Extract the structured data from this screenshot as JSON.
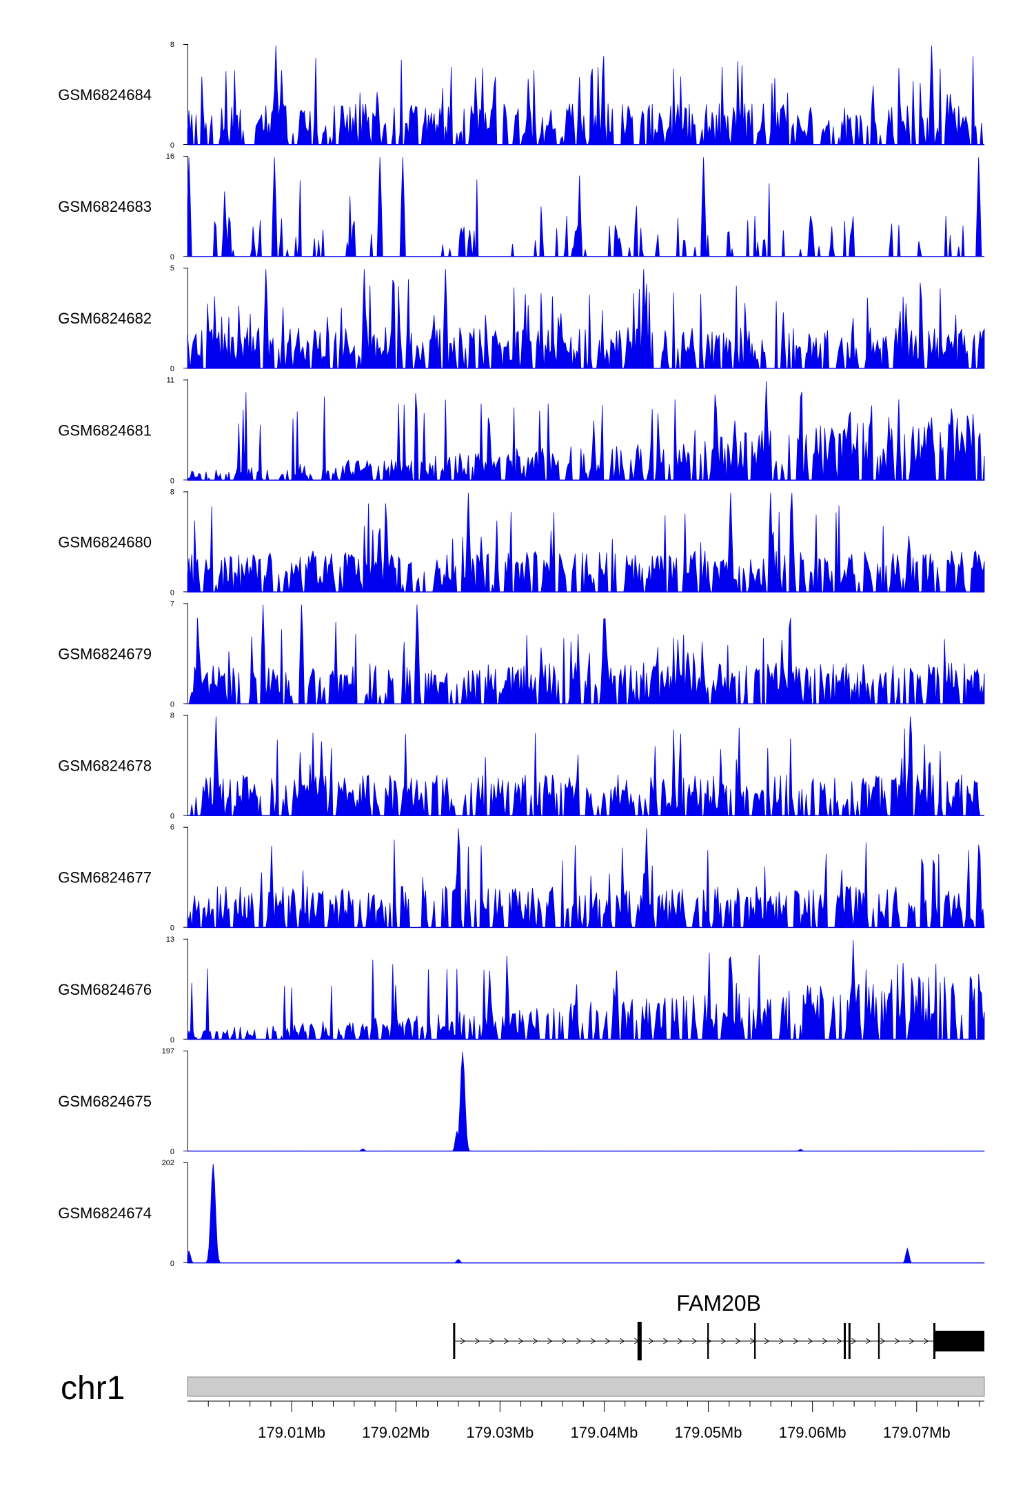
{
  "chart_data": {
    "type": "area",
    "title": "",
    "xlabel": "",
    "ylabel": "",
    "xlim": [
      179000000,
      179076500
    ],
    "chromosome": "chr1",
    "x_ticks": [
      179010000,
      179020000,
      179030000,
      179040000,
      179050000,
      179060000,
      179070000
    ],
    "x_tick_labels": [
      "179.01Mb",
      "179.02Mb",
      "179.03Mb",
      "179.04Mb",
      "179.05Mb",
      "179.06Mb",
      "179.07Mb"
    ],
    "color": "#0000ee",
    "tracks": [
      {
        "name": "GSM6824684",
        "ymax": 8,
        "ymin_label": "0",
        "ymax_label": "8",
        "profile": "noisy-uniform",
        "peaks": [
          [
            179008500,
            8
          ],
          [
            179071500,
            8
          ],
          [
            179009000,
            6
          ]
        ]
      },
      {
        "name": "GSM6824683",
        "ymax": 16,
        "ymin_label": "0",
        "ymax_label": "16",
        "profile": "sparse-spiky",
        "peaks": [
          [
            179000200,
            16
          ],
          [
            179008300,
            16
          ],
          [
            179018500,
            16
          ],
          [
            179020700,
            16
          ],
          [
            179049500,
            16
          ],
          [
            179076000,
            16
          ]
        ]
      },
      {
        "name": "GSM6824682",
        "ymax": 5,
        "ymin_label": "0",
        "ymax_label": "5",
        "profile": "noisy-uniform",
        "peaks": [
          [
            179007500,
            5
          ],
          [
            179017000,
            5
          ],
          [
            179024800,
            5
          ],
          [
            179043800,
            5
          ]
        ]
      },
      {
        "name": "GSM6824681",
        "ymax": 11,
        "ymin_label": "0",
        "ymax_label": "11",
        "profile": "rising",
        "peaks": [
          [
            179055500,
            11
          ],
          [
            179050800,
            8
          ],
          [
            179063500,
            7
          ],
          [
            179067300,
            7
          ]
        ]
      },
      {
        "name": "GSM6824680",
        "ymax": 8,
        "ymin_label": "0",
        "ymax_label": "8",
        "profile": "noisy-uniform",
        "peaks": [
          [
            179027000,
            8
          ],
          [
            179052200,
            8
          ],
          [
            179056000,
            8
          ],
          [
            179058000,
            8
          ]
        ]
      },
      {
        "name": "GSM6824679",
        "ymax": 7,
        "ymin_label": "0",
        "ymax_label": "7",
        "profile": "noisy-uniform",
        "peaks": [
          [
            179007300,
            7
          ],
          [
            179011000,
            7
          ],
          [
            179022000,
            7
          ],
          [
            179040000,
            6
          ]
        ]
      },
      {
        "name": "GSM6824678",
        "ymax": 8,
        "ymin_label": "0",
        "ymax_label": "8",
        "profile": "noisy-uniform",
        "peaks": [
          [
            179002800,
            8
          ],
          [
            179069400,
            8
          ],
          [
            179012800,
            6
          ]
        ]
      },
      {
        "name": "GSM6824677",
        "ymax": 6,
        "ymin_label": "0",
        "ymax_label": "6",
        "profile": "noisy-uniform",
        "peaks": [
          [
            179026000,
            6
          ],
          [
            179044100,
            6
          ],
          [
            179076000,
            5
          ]
        ]
      },
      {
        "name": "GSM6824676",
        "ymax": 13,
        "ymin_label": "0",
        "ymax_label": "13",
        "profile": "rising",
        "peaks": [
          [
            179063900,
            13
          ],
          [
            179029000,
            9
          ],
          [
            179041200,
            9
          ],
          [
            179068700,
            10
          ]
        ]
      },
      {
        "name": "GSM6824675",
        "ymax": 197,
        "ymin_label": "0",
        "ymax_label": "197",
        "profile": "flat-with-peak",
        "peaks": [
          [
            179026400,
            197
          ],
          [
            179025800,
            40
          ],
          [
            179016800,
            5
          ],
          [
            179058800,
            4
          ]
        ]
      },
      {
        "name": "GSM6824674",
        "ymax": 202,
        "ymin_label": "0",
        "ymax_label": "202",
        "profile": "flat-with-peak",
        "peaks": [
          [
            179002500,
            202
          ],
          [
            179069100,
            30
          ],
          [
            179000100,
            25
          ],
          [
            179026000,
            8
          ]
        ]
      }
    ],
    "gene": {
      "name": "FAM20B",
      "strand": "+",
      "start": 179025500,
      "end": 179076500,
      "exons": [
        [
          179025500,
          179025700,
          "thin"
        ],
        [
          179043200,
          179043600,
          "thick"
        ],
        [
          179049900,
          179050050,
          "thin"
        ],
        [
          179054400,
          179054550,
          "thin"
        ],
        [
          179063000,
          179063200,
          "thin"
        ],
        [
          179063450,
          179063650,
          "thin"
        ],
        [
          179066300,
          179066450,
          "thin"
        ],
        [
          179071600,
          179071800,
          "thin"
        ],
        [
          179071800,
          179076500,
          "utr"
        ]
      ]
    }
  }
}
